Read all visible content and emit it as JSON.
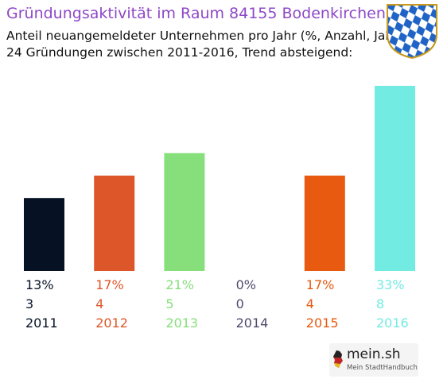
{
  "header": {
    "title": "Gründungsaktivität im Raum 84155 Bodenkirchen",
    "subtitle_line1": "Anteil neuangemeldeter Unternehmen pro Jahr (%, Anzahl, Jahr)",
    "subtitle_line2": "24 Gründungen zwischen 2011-2016, Trend absteigend:"
  },
  "crest_icon": "bavaria-lozenge-crest-icon",
  "chart_data": {
    "type": "bar",
    "title": "Gründungsaktivität im Raum 84155 Bodenkirchen",
    "categories": [
      "2011",
      "2012",
      "2013",
      "2014",
      "2015",
      "2016"
    ],
    "percent_labels": [
      "13%",
      "17%",
      "21%",
      "0%",
      "17%",
      "33%"
    ],
    "count_labels": [
      "3",
      "4",
      "5",
      "0",
      "4",
      "8"
    ],
    "values": [
      13,
      17,
      21,
      0,
      17,
      33
    ],
    "counts": [
      3,
      4,
      5,
      0,
      4,
      8
    ],
    "colors": [
      "#061224",
      "#dd5629",
      "#86df7b",
      "#4f4a6e",
      "#e75a10",
      "#72ebe2"
    ],
    "xlabel": "",
    "ylabel": "",
    "ylim": [
      0,
      33
    ],
    "grid": false,
    "legend": "none"
  },
  "logo": {
    "name": "mein.sh",
    "tagline": "Mein StadtHandbuch",
    "icon": "germany-map-icon"
  }
}
